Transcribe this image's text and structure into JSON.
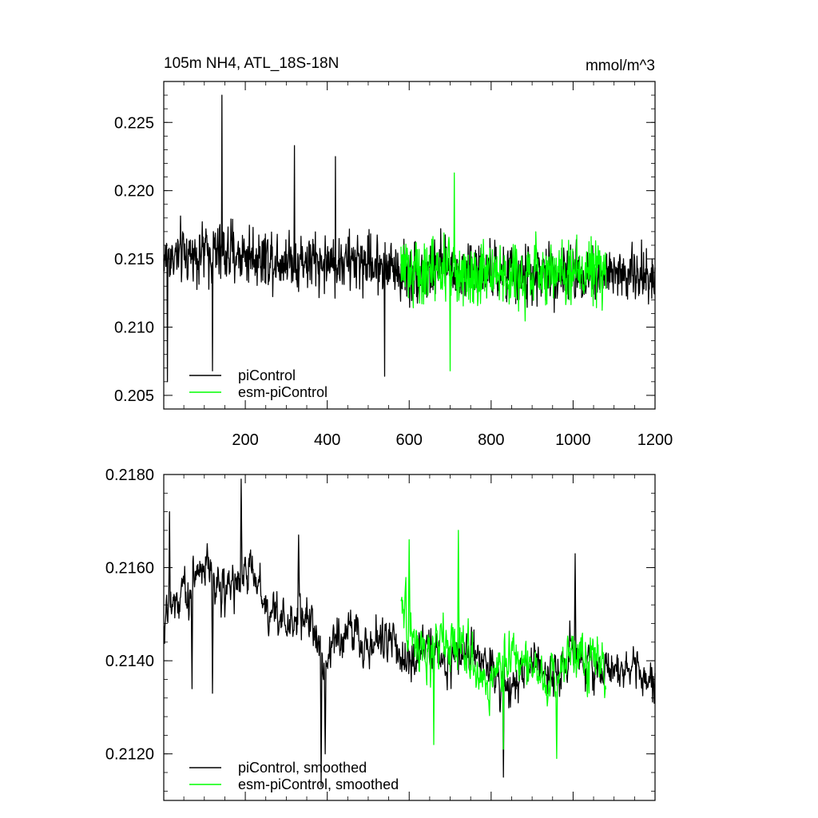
{
  "chart_data": [
    {
      "type": "line",
      "title": "105m NH4, ATL_18S-18N",
      "units": "mmol/m^3",
      "xlim": [
        1,
        1200
      ],
      "ylim": [
        0.204,
        0.228
      ],
      "xticks": [
        200,
        400,
        600,
        800,
        1000,
        1200
      ],
      "xtick_labels": [
        "200",
        "400",
        "600",
        "800",
        "1000",
        "1200"
      ],
      "yticks": [
        0.205,
        0.21,
        0.215,
        0.22,
        0.225
      ],
      "ytick_labels": [
        "0.205",
        "0.210",
        "0.215",
        "0.220",
        "0.225"
      ],
      "grid": false,
      "legend": "bottom-left",
      "series": [
        {
          "name": "piControl",
          "color": "#000000",
          "x_range": [
            1,
            1200
          ],
          "level_profile": {
            "x": [
              1,
              100,
              200,
              300,
              400,
              500,
              600,
              700,
              800,
              900,
              1000,
              1100,
              1200
            ],
            "y": [
              0.215,
              0.2155,
              0.2153,
              0.215,
              0.2147,
              0.2148,
              0.214,
              0.2143,
              0.2138,
              0.2137,
              0.214,
              0.2139,
              0.2137
            ]
          },
          "typical_deviation": 0.0018,
          "spikes": [
            {
              "x": 10,
              "y": 0.206
            },
            {
              "x": 120,
              "y": 0.2068
            },
            {
              "x": 143,
              "y": 0.227
            },
            {
              "x": 320,
              "y": 0.2233
            },
            {
              "x": 420,
              "y": 0.2225
            },
            {
              "x": 540,
              "y": 0.2064
            }
          ]
        },
        {
          "name": "esm-piControl",
          "color": "#00ff00",
          "x_range": [
            580,
            1080
          ],
          "level_profile": {
            "x": [
              580,
              700,
              800,
              900,
              1000,
              1080
            ],
            "y": [
              0.2142,
              0.2142,
              0.214,
              0.2138,
              0.214,
              0.214
            ]
          },
          "typical_deviation": 0.002,
          "spikes": [
            {
              "x": 700,
              "y": 0.2068
            },
            {
              "x": 710,
              "y": 0.2213
            }
          ]
        }
      ]
    },
    {
      "type": "line",
      "title": "",
      "xlim": [
        1,
        1200
      ],
      "ylim": [
        0.211,
        0.218
      ],
      "xticks": [
        200,
        400,
        600,
        800,
        1000,
        1200
      ],
      "xtick_labels": [],
      "yticks": [
        0.212,
        0.214,
        0.216,
        0.218
      ],
      "ytick_labels": [
        "0.2120",
        "0.2140",
        "0.2160",
        "0.2180"
      ],
      "grid": false,
      "legend": "bottom-left",
      "series": [
        {
          "name": "piControl, smoothed",
          "color": "#000000",
          "x_range": [
            1,
            1200
          ],
          "level_profile": {
            "x": [
              1,
              60,
              100,
              150,
              200,
              250,
              300,
              350,
              400,
              450,
              500,
              550,
              600,
              650,
              700,
              750,
              800,
              850,
              900,
              950,
              1000,
              1050,
              1100,
              1150,
              1200
            ],
            "y": [
              0.215,
              0.2155,
              0.2162,
              0.2155,
              0.216,
              0.2152,
              0.2148,
              0.215,
              0.214,
              0.2148,
              0.2143,
              0.2145,
              0.214,
              0.2142,
              0.214,
              0.2142,
              0.2138,
              0.2135,
              0.214,
              0.2137,
              0.2142,
              0.2138,
              0.214,
              0.2138,
              0.2135
            ]
          },
          "typical_deviation": 0.0007,
          "spikes": [
            {
              "x": 15,
              "y": 0.2172
            },
            {
              "x": 70,
              "y": 0.2134
            },
            {
              "x": 120,
              "y": 0.2133
            },
            {
              "x": 190,
              "y": 0.2179
            },
            {
              "x": 330,
              "y": 0.2167
            },
            {
              "x": 385,
              "y": 0.2113
            },
            {
              "x": 395,
              "y": 0.212
            },
            {
              "x": 830,
              "y": 0.2115
            },
            {
              "x": 1005,
              "y": 0.2163
            }
          ]
        },
        {
          "name": "esm-piControl, smoothed",
          "color": "#00ff00",
          "x_range": [
            580,
            1080
          ],
          "level_profile": {
            "x": [
              580,
              650,
              700,
              750,
              800,
              850,
              900,
              950,
              1000,
              1050,
              1080
            ],
            "y": [
              0.2148,
              0.2142,
              0.2145,
              0.214,
              0.2135,
              0.2142,
              0.2138,
              0.2136,
              0.2142,
              0.214,
              0.2138
            ]
          },
          "typical_deviation": 0.0008,
          "spikes": [
            {
              "x": 600,
              "y": 0.2166
            },
            {
              "x": 720,
              "y": 0.2168
            },
            {
              "x": 660,
              "y": 0.2122
            },
            {
              "x": 830,
              "y": 0.2121
            },
            {
              "x": 960,
              "y": 0.2119
            }
          ]
        }
      ]
    }
  ]
}
